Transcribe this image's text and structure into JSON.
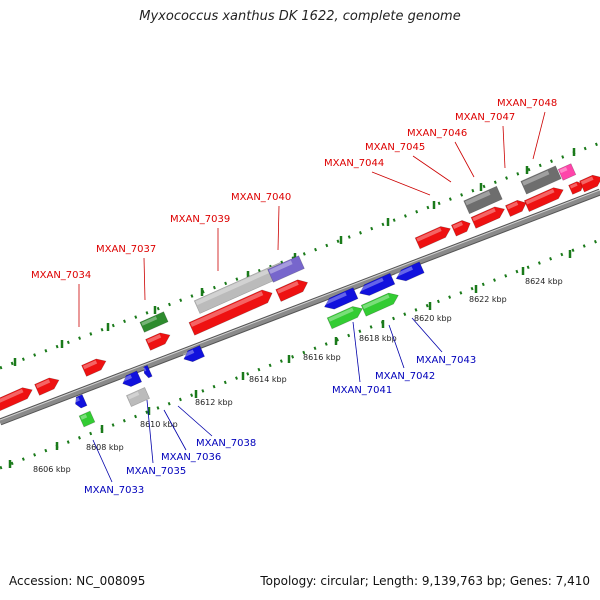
{
  "title": "Myxococcus xanthus DK 1622, complete genome",
  "footer": {
    "accession": "Accession: NC_008095",
    "summary": "Topology: circular; Length: 9,139,763 bp; Genes: 7,410"
  },
  "colors": {
    "backbone": "#8a8a8a",
    "tick": "#1a7a1a",
    "forward_label": "#dd0000",
    "reverse_label": "#0000bb",
    "forward_gene": "#ee1111",
    "reverse_gene": "#1111dd",
    "rna_gene": "#33cc33",
    "dark_gene": "#2e8b2e",
    "pseudo_gene": "#bbbbbb",
    "gray_gene": "#6e6e6e",
    "purple_gene": "#7766cc",
    "pink_gene": "#ff44aa"
  },
  "kbp_labels": [
    "8606 kbp",
    "8608 kbp",
    "8610 kbp",
    "8612 kbp",
    "8614 kbp",
    "8616 kbp",
    "8618 kbp",
    "8620 kbp",
    "8622 kbp",
    "8624 kbp"
  ],
  "forward_gene_labels": [
    "MXAN_7034",
    "MXAN_7037",
    "MXAN_7039",
    "MXAN_7040",
    "MXAN_7044",
    "MXAN_7045",
    "MXAN_7046",
    "MXAN_7047",
    "MXAN_7048"
  ],
  "reverse_gene_labels": [
    "MXAN_7033",
    "MXAN_7035",
    "MXAN_7036",
    "MXAN_7038",
    "MXAN_7041",
    "MXAN_7042",
    "MXAN_7043"
  ]
}
